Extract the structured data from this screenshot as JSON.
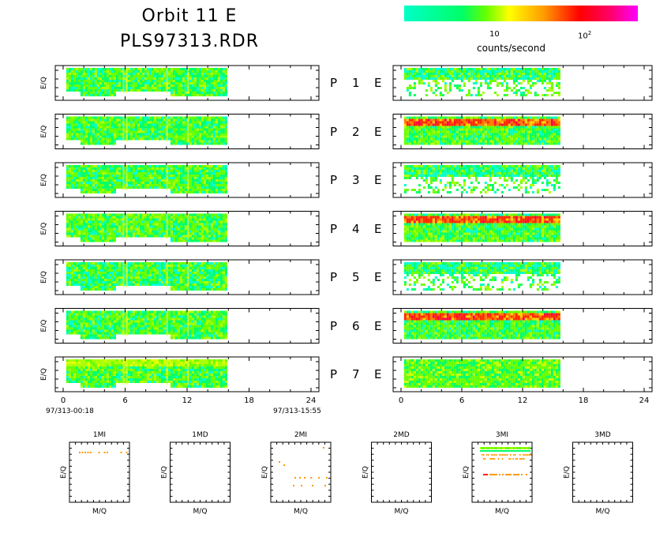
{
  "title_line1": "Orbit  11  E",
  "title_line2": "PLS97313.RDR",
  "colorbar": {
    "tick_10": "10",
    "tick_100_base": "10",
    "tick_100_exp": "2",
    "label": "counts/second",
    "colors": [
      "#00ffc8",
      "#00ff66",
      "#66ff00",
      "#ffff00",
      "#ff9900",
      "#ff0000",
      "#ff0066",
      "#ff00ff"
    ]
  },
  "start_time": "97/313-00:18",
  "end_time": "97/313-15:55",
  "panel_ylabel": "E/Q",
  "minipanel_xlabel": "M/Q",
  "panel_rows": [
    {
      "p": "P",
      "n": "1",
      "e": "E"
    },
    {
      "p": "P",
      "n": "2",
      "e": "E"
    },
    {
      "p": "P",
      "n": "3",
      "e": "E"
    },
    {
      "p": "P",
      "n": "4",
      "e": "E"
    },
    {
      "p": "P",
      "n": "5",
      "e": "E"
    },
    {
      "p": "P",
      "n": "6",
      "e": "E"
    },
    {
      "p": "P",
      "n": "7",
      "e": "E"
    }
  ],
  "mini_panels": [
    "1MI",
    "1MD",
    "2MI",
    "2MD",
    "3MI",
    "3MD"
  ],
  "chart_data": {
    "type": "heatmap",
    "x_axis": {
      "range": [
        0,
        24
      ],
      "ticks": [
        "0",
        "6",
        "12",
        "18",
        "24"
      ]
    },
    "data_time_range_hours": [
      0.3,
      15.92
    ],
    "colorscale": "log counts/second",
    "left_column": "P1-P7 time spectrograms",
    "right_column": "E channel time spectrograms",
    "right_dominant_level": [
      "low",
      "high",
      "low",
      "high",
      "low",
      "high",
      "medium"
    ]
  }
}
